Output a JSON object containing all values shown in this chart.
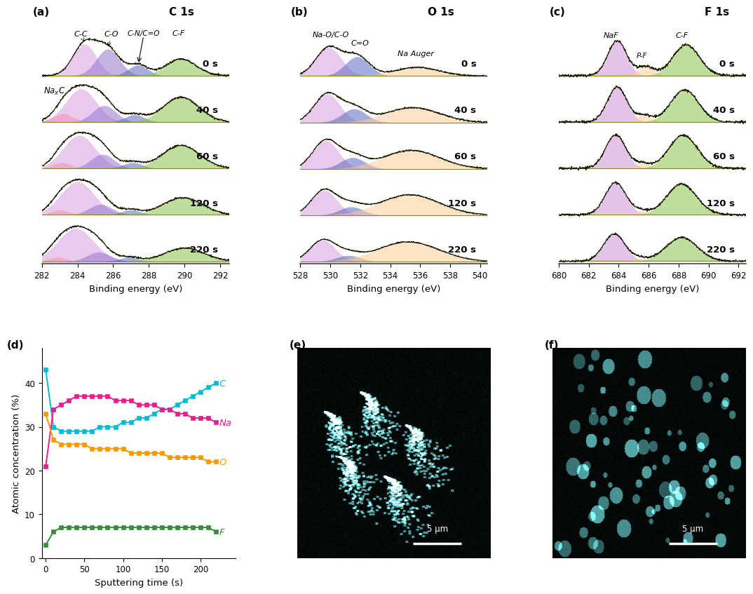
{
  "panel_a_title": "C 1s",
  "panel_b_title": "O 1s",
  "panel_c_title": "F 1s",
  "panel_a_label": "(a)",
  "panel_b_label": "(b)",
  "panel_c_label": "(c)",
  "panel_d_label": "(d)",
  "panel_e_label": "(e)",
  "panel_f_label": "(f)",
  "sputtering_times": [
    "0 s",
    "40 s",
    "60 s",
    "120 s",
    "220 s"
  ],
  "a_xrange": [
    282,
    292
  ],
  "b_xrange": [
    528,
    540
  ],
  "c_xrange": [
    680,
    692
  ],
  "xlabel": "Binding energy (eV)",
  "ylabel_d": "Atomic concentration (%)",
  "xlabel_d": "Sputtering time (s)",
  "d_xdata": [
    0,
    10,
    20,
    30,
    40,
    50,
    60,
    70,
    80,
    90,
    100,
    110,
    120,
    130,
    140,
    150,
    160,
    170,
    180,
    190,
    200,
    210,
    220
  ],
  "d_C": [
    43,
    30,
    29,
    29,
    29,
    29,
    29,
    30,
    30,
    30,
    31,
    31,
    32,
    32,
    33,
    34,
    34,
    35,
    36,
    37,
    38,
    39,
    40
  ],
  "d_Na": [
    21,
    34,
    35,
    36,
    37,
    37,
    37,
    37,
    37,
    36,
    36,
    36,
    35,
    35,
    35,
    34,
    34,
    33,
    33,
    32,
    32,
    32,
    31
  ],
  "d_O": [
    33,
    27,
    26,
    26,
    26,
    26,
    25,
    25,
    25,
    25,
    25,
    24,
    24,
    24,
    24,
    24,
    23,
    23,
    23,
    23,
    23,
    22,
    22
  ],
  "d_F": [
    3,
    6,
    7,
    7,
    7,
    7,
    7,
    7,
    7,
    7,
    7,
    7,
    7,
    7,
    7,
    7,
    7,
    7,
    7,
    7,
    7,
    7,
    6
  ],
  "color_C": "#00bcd4",
  "color_Na": "#e91e8c",
  "color_O": "#ff9800",
  "color_F": "#388e3c",
  "bg_color": "#ffffff",
  "curve_color": "#1a1a00",
  "fill_lilac": "#d7a0e0",
  "fill_blue_purple": "#9575cd",
  "fill_indigo": "#5c6bc0",
  "fill_green": "#8bc34a",
  "fill_orange": "#ffcc99",
  "fill_pink": "#f48fb1"
}
